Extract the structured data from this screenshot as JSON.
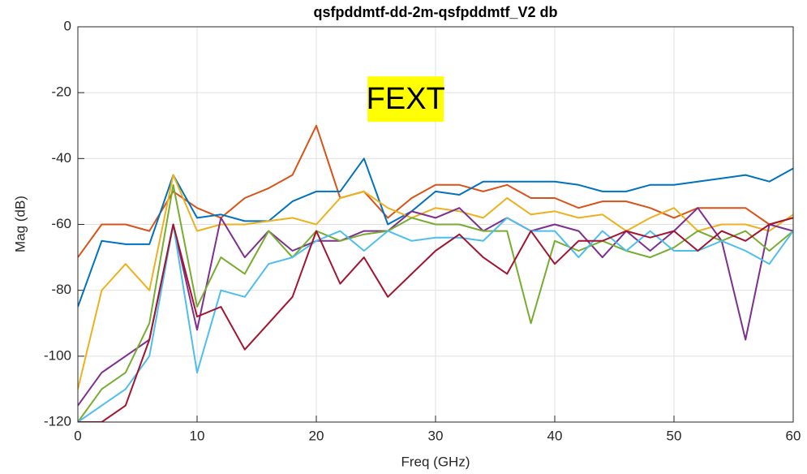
{
  "chart_data": {
    "type": "line",
    "title": "qsfpddmtf-dd-2m-qsfpddmtf_V2 db",
    "x_label": "Freq (GHz)",
    "y_label": "Mag (dB)",
    "annotation": "FEXT",
    "x": [
      0,
      2,
      4,
      6,
      8,
      10,
      12,
      14,
      16,
      18,
      20,
      22,
      24,
      26,
      28,
      30,
      32,
      34,
      36,
      38,
      40,
      42,
      44,
      46,
      48,
      50,
      52,
      54,
      56,
      58,
      60
    ],
    "series": [
      {
        "color": "#D95319",
        "values": [
          -70,
          -60,
          -60,
          -62,
          -50,
          -55,
          -58,
          -52,
          -49,
          -45,
          -30,
          -52,
          -50,
          -58,
          -52,
          -48,
          -48,
          -50,
          -48,
          -52,
          -52,
          -55,
          -53,
          -53,
          -55,
          -58,
          -55,
          -55,
          -55,
          -60,
          -58
        ]
      },
      {
        "color": "#0072BD",
        "values": [
          -85,
          -65,
          -66,
          -66,
          -45,
          -58,
          -57,
          -59,
          -59,
          -53,
          -50,
          -50,
          -40,
          -60,
          -56,
          -50,
          -51,
          -47,
          -47,
          -47,
          -47,
          -48,
          -50,
          -50,
          -48,
          -48,
          -47,
          -46,
          -45,
          -47,
          -43
        ]
      },
      {
        "color": "#EDB120",
        "values": [
          -110,
          -80,
          -72,
          -80,
          -45,
          -62,
          -60,
          -60,
          -59,
          -58,
          -60,
          -52,
          -50,
          -55,
          -58,
          -55,
          -56,
          -58,
          -52,
          -57,
          -56,
          -58,
          -57,
          -62,
          -58,
          -55,
          -62,
          -60,
          -60,
          -62,
          -57
        ]
      },
      {
        "color": "#7E2F8E",
        "values": [
          -115,
          -105,
          -100,
          -95,
          -60,
          -92,
          -58,
          -70,
          -62,
          -68,
          -65,
          -65,
          -62,
          -62,
          -56,
          -58,
          -55,
          -62,
          -58,
          -62,
          -60,
          -62,
          -70,
          -62,
          -68,
          -62,
          -55,
          -65,
          -95,
          -60,
          -62
        ]
      },
      {
        "color": "#77AC30",
        "values": [
          -120,
          -110,
          -105,
          -90,
          -48,
          -85,
          -70,
          -75,
          -62,
          -70,
          -62,
          -65,
          -63,
          -62,
          -58,
          -60,
          -60,
          -62,
          -62,
          -90,
          -65,
          -68,
          -65,
          -68,
          -70,
          -67,
          -62,
          -65,
          -62,
          -68,
          -62
        ]
      },
      {
        "color": "#4DBEEE",
        "values": [
          -120,
          -115,
          -110,
          -100,
          -60,
          -105,
          -80,
          -82,
          -72,
          -70,
          -65,
          -62,
          -68,
          -62,
          -65,
          -64,
          -64,
          -65,
          -58,
          -62,
          -62,
          -70,
          -62,
          -68,
          -62,
          -68,
          -68,
          -65,
          -68,
          -72,
          -62
        ]
      },
      {
        "color": "#A2142F",
        "values": [
          -120,
          -120,
          -115,
          -95,
          -60,
          -88,
          -85,
          -98,
          -90,
          -82,
          -62,
          -78,
          -70,
          -82,
          -75,
          -68,
          -63,
          -70,
          -75,
          -62,
          -72,
          -65,
          -65,
          -62,
          -64,
          -62,
          -68,
          -62,
          -65,
          -60,
          -58
        ]
      }
    ],
    "xlim": [
      0,
      60
    ],
    "xticks": [
      0,
      10,
      20,
      30,
      40,
      50,
      60
    ],
    "ylim": [
      -120,
      0
    ],
    "yticks": [
      -120,
      -100,
      -80,
      -60,
      -40,
      -20,
      0
    ],
    "grid": true
  }
}
